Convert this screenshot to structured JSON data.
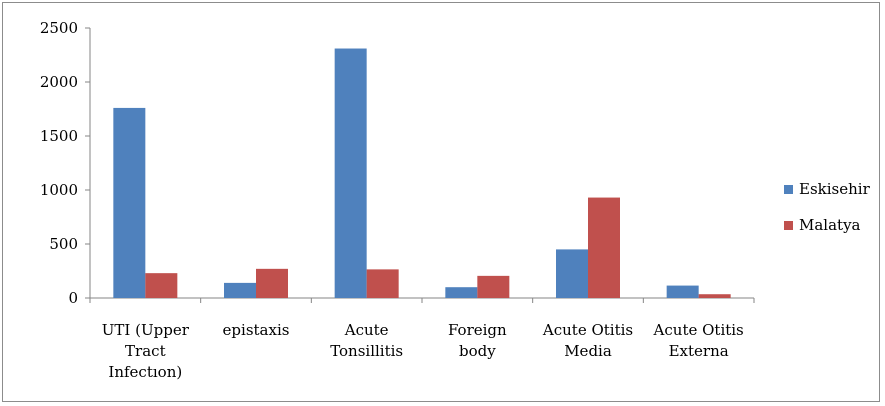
{
  "chart_data": {
    "type": "bar",
    "categories": [
      [
        "UTI (Upper",
        "Tract",
        "Infectıon)"
      ],
      [
        "epistaxis"
      ],
      [
        "Acute",
        "Tonsillitis"
      ],
      [
        "Foreign",
        "body"
      ],
      [
        "Acute Otitis",
        "Media"
      ],
      [
        "Acute Otitis",
        "Externa"
      ]
    ],
    "series": [
      {
        "name": "Eskisehir",
        "color": "#4f81bd",
        "values": [
          1760,
          140,
          2310,
          100,
          450,
          115
        ]
      },
      {
        "name": "Malatya",
        "color": "#c0504d",
        "values": [
          230,
          270,
          265,
          205,
          930,
          35
        ]
      }
    ],
    "yticks": [
      0,
      500,
      1000,
      1500,
      2000,
      2500
    ],
    "ylim": [
      0,
      2500
    ],
    "legend_position": "right",
    "grid": false
  }
}
